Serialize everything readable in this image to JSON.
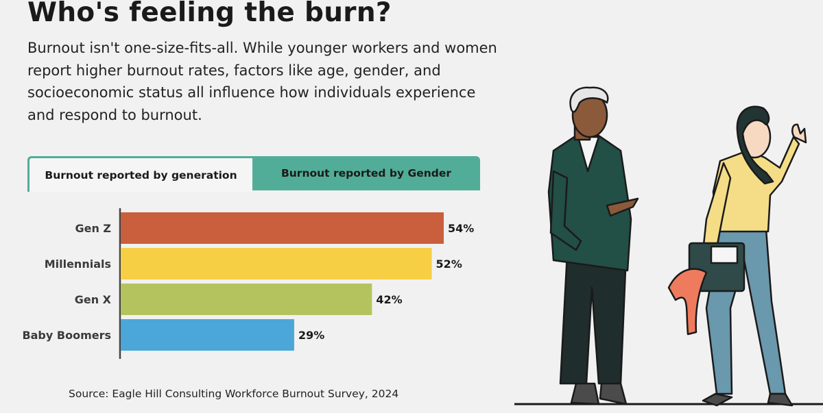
{
  "header": {
    "title": "Who's feeling the burn?",
    "subtitle": "Burnout isn't one-size-fits-all. While younger workers and women report higher burnout rates, factors like age, gender, and socioeconomic status all influence how individuals experience and respond to burnout."
  },
  "tabs": [
    {
      "label": "Burnout reported by generation",
      "active": true
    },
    {
      "label": "Burnout reported by Gender",
      "active": false
    }
  ],
  "colors": {
    "accent": "#52ad98",
    "gen_z": "#c95f3c",
    "millennials": "#f7cf45",
    "gen_x": "#b5c35e",
    "baby_boomers": "#4ba7d8"
  },
  "chart_data": {
    "type": "bar",
    "orientation": "horizontal",
    "categories": [
      "Gen Z",
      "Millennials",
      "Gen X",
      "Baby Boomers"
    ],
    "values": [
      54,
      52,
      42,
      29
    ],
    "value_labels": [
      "54%",
      "52%",
      "42%",
      "29%"
    ],
    "bar_colors": [
      "#c95f3c",
      "#f7cf45",
      "#b5c35e",
      "#4ba7d8"
    ],
    "xlim": [
      0,
      54
    ],
    "grid": false,
    "legend": "none"
  },
  "source": "Source: Eagle Hill Consulting Workforce Burnout Survey, 2024",
  "illustration": {
    "icon": "two-workers-illustration"
  }
}
